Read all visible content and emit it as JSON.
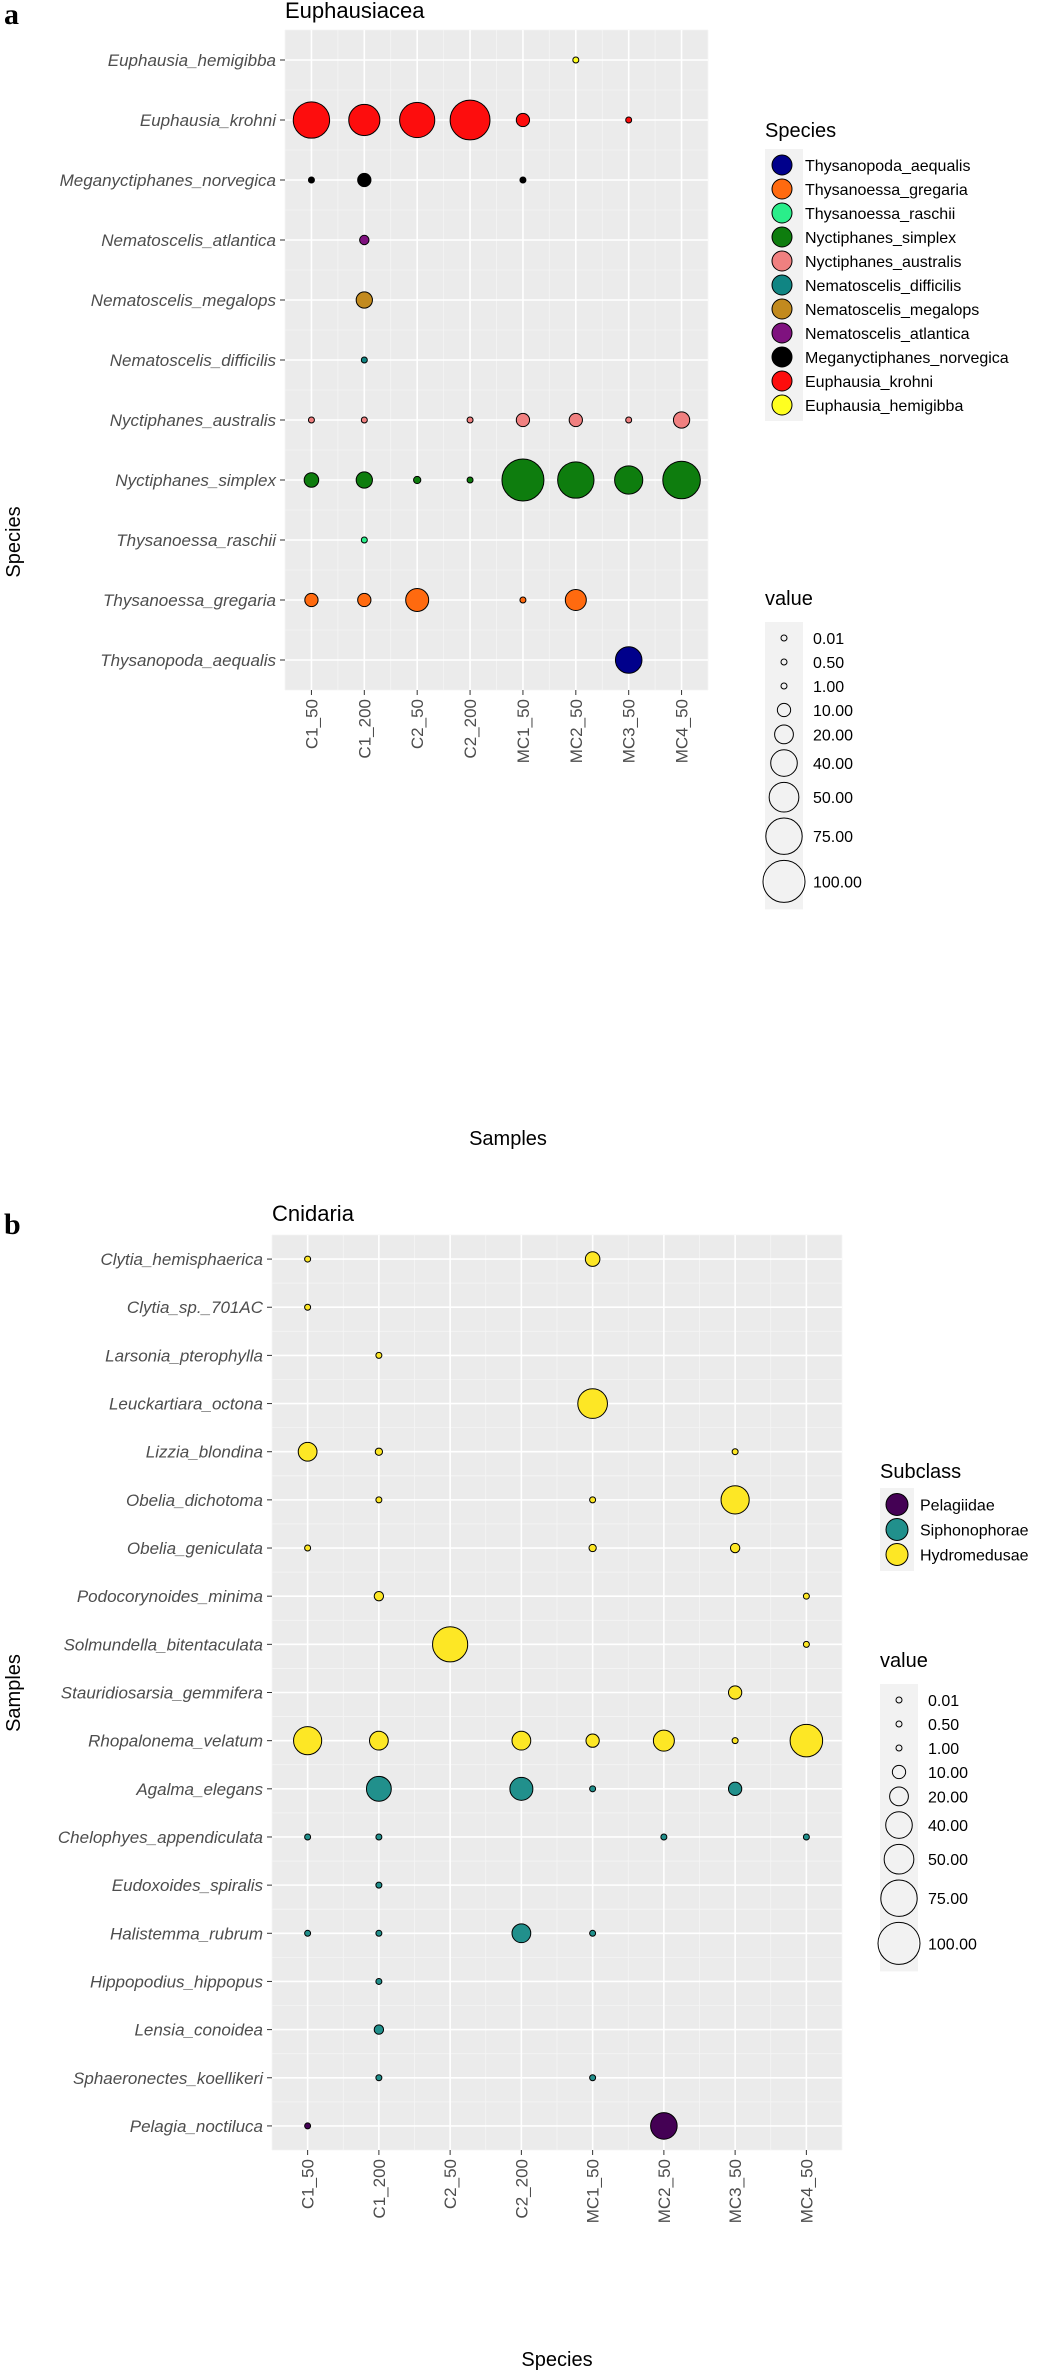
{
  "chart_data": [
    {
      "type": "scatter",
      "panel_label": "a",
      "title": "Euphausiacea",
      "xlabel": "Samples",
      "ylabel": "Species",
      "categories": [
        "C1_50",
        "C1_200",
        "C2_50",
        "C2_200",
        "MC1_50",
        "MC2_50",
        "MC3_50",
        "MC4_50"
      ],
      "species": [
        "Euphausia_hemigibba",
        "Euphausia_krohni",
        "Meganyctiphanes_norvegica",
        "Nematoscelis_atlantica",
        "Nematoscelis_megalops",
        "Nematoscelis_difficilis",
        "Nyctiphanes_australis",
        "Nyctiphanes_simplex",
        "Thysanoessa_raschii",
        "Thysanoessa_gregaria",
        "Thysanopoda_aequalis"
      ],
      "color_legend_title": "Species",
      "color_legend": [
        {
          "label": "Thysanopoda_aequalis",
          "color": "#00008b"
        },
        {
          "label": "Thysanoessa_gregaria",
          "color": "#ff6a0f"
        },
        {
          "label": "Thysanoessa_raschii",
          "color": "#2aee8a"
        },
        {
          "label": "Nyctiphanes_simplex",
          "color": "#0e7d0e"
        },
        {
          "label": "Nyctiphanes_australis",
          "color": "#f08080"
        },
        {
          "label": "Nematoscelis_difficilis",
          "color": "#108583"
        },
        {
          "label": "Nematoscelis_megalops",
          "color": "#c28a1e"
        },
        {
          "label": "Nematoscelis_atlantica",
          "color": "#7f127f"
        },
        {
          "label": "Meganyctiphanes_norvegica",
          "color": "#000000"
        },
        {
          "label": "Euphausia_krohni",
          "color": "#fd0d0d"
        },
        {
          "label": "Euphausia_hemigibba",
          "color": "#ffff20"
        }
      ],
      "size_legend_title": "value",
      "size_legend": [
        "0.01",
        "0.50",
        "1.00",
        "10.00",
        "20.00",
        "40.00",
        "50.00",
        "75.00",
        "100.00"
      ],
      "points": [
        {
          "species": "Euphausia_hemigibba",
          "sample": "MC2_50",
          "value": 1
        },
        {
          "species": "Euphausia_krohni",
          "sample": "C1_50",
          "value": 75
        },
        {
          "species": "Euphausia_krohni",
          "sample": "C1_200",
          "value": 55
        },
        {
          "species": "Euphausia_krohni",
          "sample": "C2_50",
          "value": 70
        },
        {
          "species": "Euphausia_krohni",
          "sample": "C2_200",
          "value": 90
        },
        {
          "species": "Euphausia_krohni",
          "sample": "MC1_50",
          "value": 10
        },
        {
          "species": "Euphausia_krohni",
          "sample": "MC3_50",
          "value": 0.5
        },
        {
          "species": "Meganyctiphanes_norvegica",
          "sample": "C1_50",
          "value": 0.5
        },
        {
          "species": "Meganyctiphanes_norvegica",
          "sample": "C1_200",
          "value": 10
        },
        {
          "species": "Meganyctiphanes_norvegica",
          "sample": "MC1_50",
          "value": 1
        },
        {
          "species": "Nematoscelis_atlantica",
          "sample": "C1_200",
          "value": 5
        },
        {
          "species": "Nematoscelis_megalops",
          "sample": "C1_200",
          "value": 15
        },
        {
          "species": "Nematoscelis_difficilis",
          "sample": "C1_200",
          "value": 1
        },
        {
          "species": "Nyctiphanes_australis",
          "sample": "C1_50",
          "value": 1
        },
        {
          "species": "Nyctiphanes_australis",
          "sample": "C1_200",
          "value": 1
        },
        {
          "species": "Nyctiphanes_australis",
          "sample": "C2_200",
          "value": 0.5
        },
        {
          "species": "Nyctiphanes_australis",
          "sample": "MC1_50",
          "value": 10
        },
        {
          "species": "Nyctiphanes_australis",
          "sample": "MC2_50",
          "value": 10
        },
        {
          "species": "Nyctiphanes_australis",
          "sample": "MC3_50",
          "value": 1
        },
        {
          "species": "Nyctiphanes_australis",
          "sample": "MC4_50",
          "value": 15
        },
        {
          "species": "Nyctiphanes_simplex",
          "sample": "C1_50",
          "value": 12
        },
        {
          "species": "Nyctiphanes_simplex",
          "sample": "C1_200",
          "value": 15
        },
        {
          "species": "Nyctiphanes_simplex",
          "sample": "C2_50",
          "value": 3
        },
        {
          "species": "Nyctiphanes_simplex",
          "sample": "C2_200",
          "value": 0.5
        },
        {
          "species": "Nyctiphanes_simplex",
          "sample": "MC1_50",
          "value": 100
        },
        {
          "species": "Nyctiphanes_simplex",
          "sample": "MC2_50",
          "value": 75
        },
        {
          "species": "Nyctiphanes_simplex",
          "sample": "MC3_50",
          "value": 45
        },
        {
          "species": "Nyctiphanes_simplex",
          "sample": "MC4_50",
          "value": 80
        },
        {
          "species": "Thysanoessa_raschii",
          "sample": "C1_200",
          "value": 0.5
        },
        {
          "species": "Thysanoessa_gregaria",
          "sample": "C1_50",
          "value": 10
        },
        {
          "species": "Thysanoessa_gregaria",
          "sample": "C1_200",
          "value": 10
        },
        {
          "species": "Thysanoessa_gregaria",
          "sample": "C2_50",
          "value": 30
        },
        {
          "species": "Thysanoessa_gregaria",
          "sample": "MC1_50",
          "value": 0.5
        },
        {
          "species": "Thysanoessa_gregaria",
          "sample": "MC2_50",
          "value": 25
        },
        {
          "species": "Thysanopoda_aequalis",
          "sample": "MC3_50",
          "value": 40
        }
      ]
    },
    {
      "type": "scatter",
      "panel_label": "b",
      "title": "Cnidaria",
      "xlabel": "Species",
      "ylabel": "Samples",
      "categories": [
        "C1_50",
        "C1_200",
        "C2_50",
        "C2_200",
        "MC1_50",
        "MC2_50",
        "MC3_50",
        "MC4_50"
      ],
      "species": [
        "Clytia_hemisphaerica",
        "Clytia_sp._701AC",
        "Larsonia_pterophylla",
        "Leuckartiara_octona",
        "Lizzia_blondina",
        "Obelia_dichotoma",
        "Obelia_geniculata",
        "Podocorynoides_minima",
        "Solmundella_bitentaculata",
        "Stauridiosarsia_gemmifera",
        "Rhopalonema_velatum",
        "Agalma_elegans",
        "Chelophyes_appendiculata",
        "Eudoxoides_spiralis",
        "Halistemma_rubrum",
        "Hippopodius_hippopus",
        "Lensia_conoidea",
        "Sphaeronectes_koellikeri",
        "Pelagia_noctiluca"
      ],
      "color_legend_title": "Subclass",
      "color_legend": [
        {
          "label": "Pelagiidae",
          "color": "#440154"
        },
        {
          "label": "Siphonophorae",
          "color": "#21908c"
        },
        {
          "label": "Hydromedusae",
          "color": "#fde725"
        }
      ],
      "size_legend_title": "value",
      "size_legend": [
        "0.01",
        "0.50",
        "1.00",
        "10.00",
        "20.00",
        "40.00",
        "50.00",
        "75.00",
        "100.00"
      ],
      "species_class": {
        "Clytia_hemisphaerica": "Hydromedusae",
        "Clytia_sp._701AC": "Hydromedusae",
        "Larsonia_pterophylla": "Hydromedusae",
        "Leuckartiara_octona": "Hydromedusae",
        "Lizzia_blondina": "Hydromedusae",
        "Obelia_dichotoma": "Hydromedusae",
        "Obelia_geniculata": "Hydromedusae",
        "Podocorynoides_minima": "Hydromedusae",
        "Solmundella_bitentaculata": "Hydromedusae",
        "Stauridiosarsia_gemmifera": "Hydromedusae",
        "Rhopalonema_velatum": "Hydromedusae",
        "Agalma_elegans": "Siphonophorae",
        "Chelophyes_appendiculata": "Siphonophorae",
        "Eudoxoides_spiralis": "Siphonophorae",
        "Halistemma_rubrum": "Siphonophorae",
        "Hippopodius_hippopus": "Siphonophorae",
        "Lensia_conoidea": "Siphonophorae",
        "Sphaeronectes_koellikeri": "Siphonophorae",
        "Pelagia_noctiluca": "Pelagiidae"
      },
      "points": [
        {
          "species": "Clytia_hemisphaerica",
          "sample": "C1_50",
          "value": 1
        },
        {
          "species": "Clytia_hemisphaerica",
          "sample": "MC1_50",
          "value": 12
        },
        {
          "species": "Clytia_sp._701AC",
          "sample": "C1_50",
          "value": 0.5
        },
        {
          "species": "Larsonia_pterophylla",
          "sample": "C1_200",
          "value": 0.5
        },
        {
          "species": "Leuckartiara_octona",
          "sample": "MC1_50",
          "value": 50
        },
        {
          "species": "Lizzia_blondina",
          "sample": "C1_50",
          "value": 20
        },
        {
          "species": "Lizzia_blondina",
          "sample": "C1_200",
          "value": 3
        },
        {
          "species": "Lizzia_blondina",
          "sample": "MC3_50",
          "value": 0.5
        },
        {
          "species": "Obelia_dichotoma",
          "sample": "C1_200",
          "value": 0.5
        },
        {
          "species": "Obelia_dichotoma",
          "sample": "MC1_50",
          "value": 0.5
        },
        {
          "species": "Obelia_dichotoma",
          "sample": "MC3_50",
          "value": 45
        },
        {
          "species": "Obelia_geniculata",
          "sample": "C1_50",
          "value": 0.5
        },
        {
          "species": "Obelia_geniculata",
          "sample": "MC1_50",
          "value": 3
        },
        {
          "species": "Obelia_geniculata",
          "sample": "MC3_50",
          "value": 5
        },
        {
          "species": "Podocorynoides_minima",
          "sample": "C1_200",
          "value": 5
        },
        {
          "species": "Podocorynoides_minima",
          "sample": "MC4_50",
          "value": 0.5
        },
        {
          "species": "Solmundella_bitentaculata",
          "sample": "C2_50",
          "value": 70
        },
        {
          "species": "Solmundella_bitentaculata",
          "sample": "MC4_50",
          "value": 1
        },
        {
          "species": "Stauridiosarsia_gemmifera",
          "sample": "MC3_50",
          "value": 10
        },
        {
          "species": "Rhopalonema_velatum",
          "sample": "C1_50",
          "value": 45
        },
        {
          "species": "Rhopalonema_velatum",
          "sample": "C1_200",
          "value": 20
        },
        {
          "species": "Rhopalonema_velatum",
          "sample": "C2_200",
          "value": 20
        },
        {
          "species": "Rhopalonema_velatum",
          "sample": "MC1_50",
          "value": 10
        },
        {
          "species": "Rhopalonema_velatum",
          "sample": "MC2_50",
          "value": 25
        },
        {
          "species": "Rhopalonema_velatum",
          "sample": "MC3_50",
          "value": 0.5
        },
        {
          "species": "Rhopalonema_velatum",
          "sample": "MC4_50",
          "value": 60
        },
        {
          "species": "Agalma_elegans",
          "sample": "C1_200",
          "value": 35
        },
        {
          "species": "Agalma_elegans",
          "sample": "C2_200",
          "value": 30
        },
        {
          "species": "Agalma_elegans",
          "sample": "MC1_50",
          "value": 0.5
        },
        {
          "species": "Agalma_elegans",
          "sample": "MC3_50",
          "value": 10
        },
        {
          "species": "Chelophyes_appendiculata",
          "sample": "C1_50",
          "value": 1
        },
        {
          "species": "Chelophyes_appendiculata",
          "sample": "C1_200",
          "value": 1
        },
        {
          "species": "Chelophyes_appendiculata",
          "sample": "MC2_50",
          "value": 1
        },
        {
          "species": "Chelophyes_appendiculata",
          "sample": "MC4_50",
          "value": 1
        },
        {
          "species": "Eudoxoides_spiralis",
          "sample": "C1_200",
          "value": 1
        },
        {
          "species": "Halistemma_rubrum",
          "sample": "C1_50",
          "value": 1
        },
        {
          "species": "Halistemma_rubrum",
          "sample": "C1_200",
          "value": 0.5
        },
        {
          "species": "Halistemma_rubrum",
          "sample": "C2_200",
          "value": 20
        },
        {
          "species": "Halistemma_rubrum",
          "sample": "MC1_50",
          "value": 0.5
        },
        {
          "species": "Hippopodius_hippopus",
          "sample": "C1_200",
          "value": 1
        },
        {
          "species": "Lensia_conoidea",
          "sample": "C1_200",
          "value": 5
        },
        {
          "species": "Sphaeronectes_koellikeri",
          "sample": "C1_200",
          "value": 0.5
        },
        {
          "species": "Sphaeronectes_koellikeri",
          "sample": "MC1_50",
          "value": 1
        },
        {
          "species": "Pelagia_noctiluca",
          "sample": "C1_50",
          "value": 1
        },
        {
          "species": "Pelagia_noctiluca",
          "sample": "MC2_50",
          "value": 40
        }
      ]
    }
  ]
}
